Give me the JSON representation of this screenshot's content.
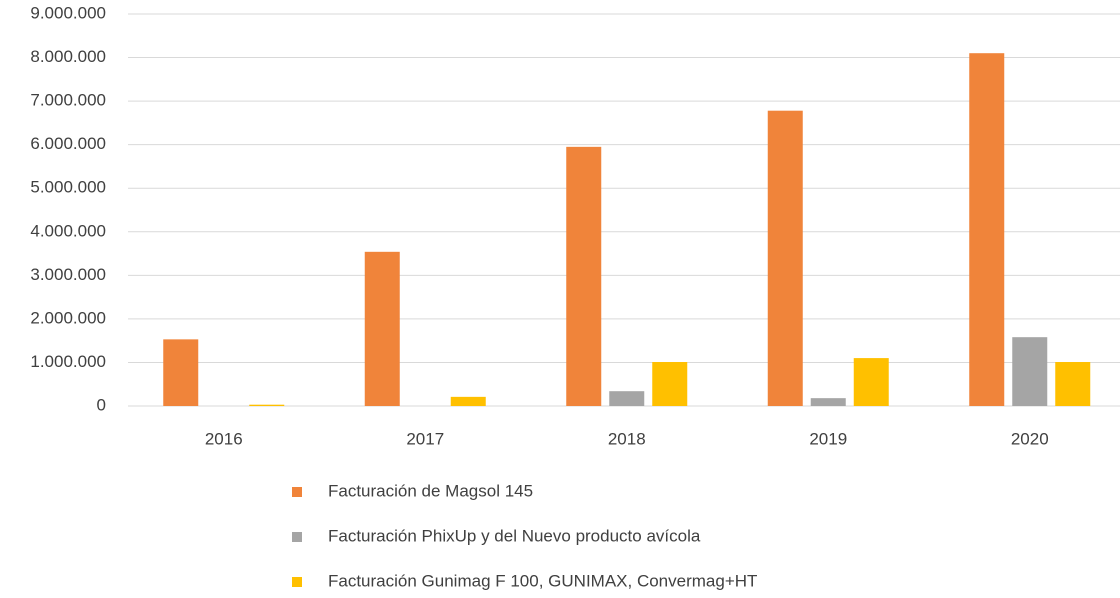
{
  "chart_data": {
    "type": "bar",
    "categories": [
      "2016",
      "2017",
      "2018",
      "2019",
      "2020"
    ],
    "series": [
      {
        "name": "Facturación de Magsol 145",
        "color": "#f0843a",
        "values": [
          1530000,
          3540000,
          5950000,
          6780000,
          8100000
        ]
      },
      {
        "name": "Facturación PhixUp y del Nuevo producto avícola",
        "color": "#a5a5a5",
        "values": [
          0,
          0,
          340000,
          180000,
          1580000
        ]
      },
      {
        "name": "Facturación Gunimag F 100, GUNIMAX, Convermag+HT",
        "color": "#ffc000",
        "values": [
          30000,
          210000,
          1010000,
          1100000,
          1010000
        ]
      }
    ],
    "ylim": [
      0,
      9000000
    ],
    "yticks": [
      0,
      {
        "value": 1000000,
        "label": "1.000.000"
      },
      {
        "value": 2000000,
        "label": "2.000.000"
      },
      {
        "value": 3000000,
        "label": "3.000.000"
      },
      {
        "value": 4000000,
        "label": "4.000.000"
      },
      {
        "value": 5000000,
        "label": "5.000.000"
      },
      {
        "value": 6000000,
        "label": "6.000.000"
      },
      {
        "value": 7000000,
        "label": "7.000.000"
      },
      {
        "value": 8000000,
        "label": "8.000.000"
      },
      {
        "value": 9000000,
        "label": "9.000.000"
      }
    ],
    "grid": true,
    "legend": "bottom"
  }
}
